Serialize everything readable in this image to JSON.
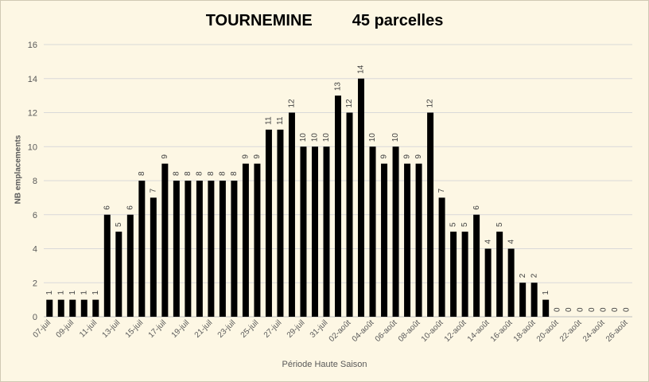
{
  "chart_data": {
    "type": "bar",
    "title": "TOURNEMINE",
    "subtitle": "45 parcelles",
    "xlabel": "Période Haute Saison",
    "ylabel": "NB emplacements",
    "ylim": [
      0,
      16
    ],
    "yticks": [
      0,
      2,
      4,
      6,
      8,
      10,
      12,
      14,
      16
    ],
    "grid": true,
    "bar_color": "#000000",
    "categories": [
      "07-juil",
      "08-juil",
      "09-juil",
      "10-juil",
      "11-juil",
      "12-juil",
      "13-juil",
      "14-juil",
      "15-juil",
      "16-juil",
      "17-juil",
      "18-juil",
      "19-juil",
      "20-juil",
      "21-juil",
      "22-juil",
      "23-juil",
      "24-juil",
      "25-juil",
      "26-juil",
      "27-juil",
      "28-juil",
      "29-juil",
      "30-juil",
      "31-juil",
      "01-août",
      "02-août",
      "03-août",
      "04-août",
      "05-août",
      "06-août",
      "07-août",
      "08-août",
      "09-août",
      "10-août",
      "11-août",
      "12-août",
      "13-août",
      "14-août",
      "15-août",
      "16-août",
      "17-août",
      "18-août",
      "19-août",
      "20-août",
      "21-août",
      "22-août",
      "23-août",
      "24-août",
      "25-août",
      "26-août"
    ],
    "tick_labels": [
      "07-juil",
      "09-juil",
      "11-juil",
      "13-juil",
      "15-juil",
      "17-juil",
      "19-juil",
      "21-juil",
      "23-juil",
      "25-juil",
      "27-juil",
      "29-juil",
      "31-juil",
      "02-août",
      "04-août",
      "06-août",
      "08-août",
      "10-août",
      "12-août",
      "14-août",
      "16-août",
      "18-août",
      "20-août",
      "22-août",
      "24-août",
      "26-août"
    ],
    "values": [
      1,
      1,
      1,
      1,
      1,
      6,
      5,
      6,
      8,
      7,
      9,
      8,
      8,
      8,
      8,
      8,
      8,
      9,
      9,
      11,
      11,
      12,
      10,
      10,
      10,
      13,
      12,
      14,
      10,
      9,
      10,
      9,
      9,
      12,
      7,
      5,
      5,
      6,
      4,
      5,
      4,
      2,
      2,
      1,
      0,
      0,
      0,
      0,
      0,
      0,
      0
    ]
  }
}
